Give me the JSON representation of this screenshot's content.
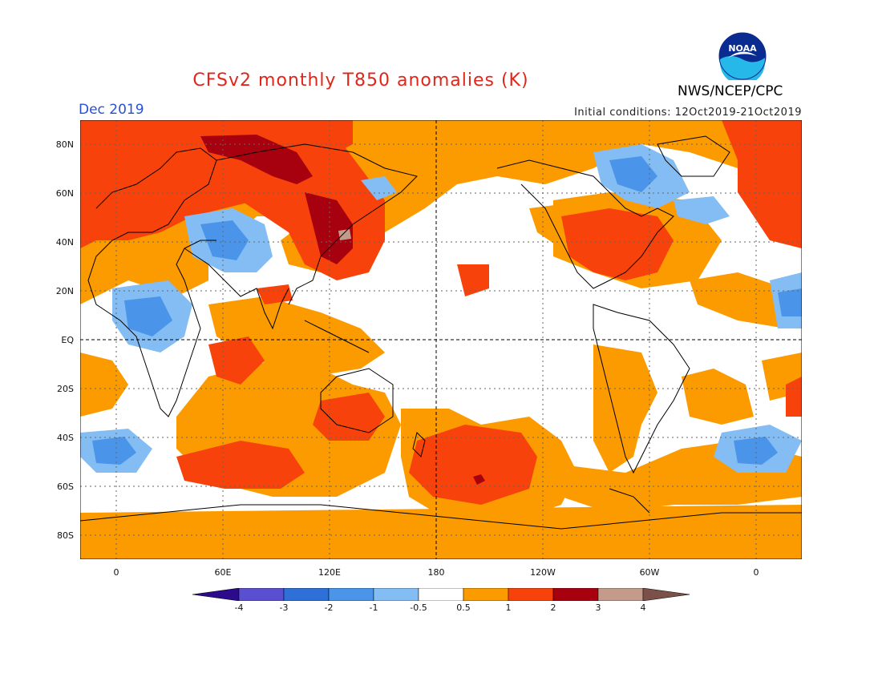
{
  "header": {
    "title": "CFSv2 monthly T850 anomalies (K)",
    "month": "Dec 2019",
    "initial_conditions": "Initial conditions: 12Oct2019-21Oct2019",
    "agency": "NWS/NCEP/CPC",
    "logo_text": "NOAA"
  },
  "axes": {
    "lat_labels": [
      "80N",
      "60N",
      "40N",
      "20N",
      "EQ",
      "20S",
      "40S",
      "60S",
      "80S"
    ],
    "lon_labels": [
      "0",
      "60E",
      "120E",
      "180",
      "120W",
      "60W",
      "0"
    ]
  },
  "colorbar": {
    "labels": [
      "-4",
      "-3",
      "-2",
      "-1",
      "-0.5",
      "0.5",
      "1",
      "2",
      "3",
      "4"
    ],
    "colors": [
      "#2b0a8c",
      "#5a4fd0",
      "#2f6fd8",
      "#4a94ea",
      "#84bdf3",
      "#ffffff",
      "#fb9b00",
      "#f7430b",
      "#a7000f",
      "#c49a8b",
      "#7a5048"
    ]
  },
  "map_style": {
    "background": "#ffffff",
    "coast": "#000000",
    "grid": "#555555",
    "equator_and_dateline": "#000000"
  }
}
